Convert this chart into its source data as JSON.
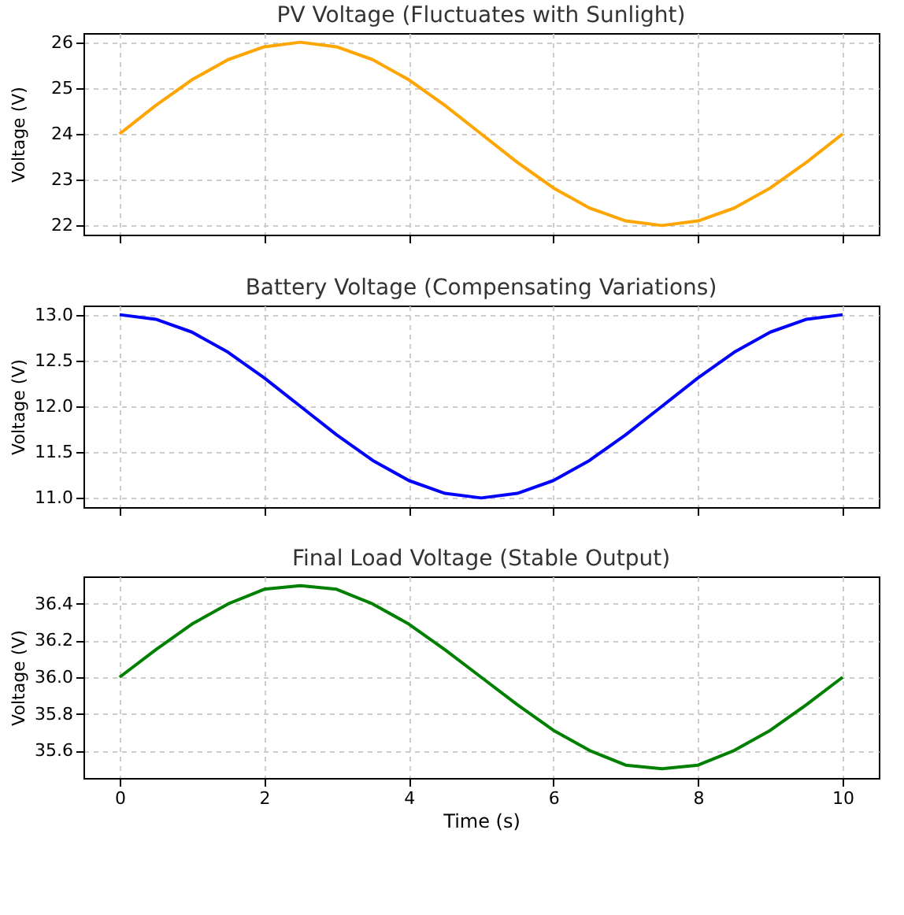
{
  "chart_data": [
    {
      "type": "line",
      "title": "PV Voltage (Fluctuates with Sunlight)",
      "ylabel": "Voltage (V)",
      "x": [
        0,
        0.5,
        1,
        1.5,
        2,
        2.5,
        3,
        3.5,
        4,
        4.5,
        5,
        5.5,
        6,
        6.5,
        7,
        7.5,
        8,
        8.5,
        9,
        9.5,
        10
      ],
      "series": [
        {
          "color": "#ffa500",
          "values": [
            24,
            24.62,
            25.18,
            25.62,
            25.9,
            26,
            25.9,
            25.62,
            25.18,
            24.62,
            24,
            23.38,
            22.82,
            22.38,
            22.1,
            22,
            22.1,
            22.38,
            22.82,
            23.38,
            24
          ]
        }
      ],
      "xlim": [
        -0.5,
        10.5
      ],
      "xticks": [
        0,
        2,
        4,
        6,
        8,
        10
      ],
      "ylim": [
        21.8,
        26.2
      ],
      "yticks": [
        22,
        23,
        24,
        25,
        26
      ],
      "grid": true,
      "tick_labels": "y"
    },
    {
      "type": "line",
      "title": "Battery Voltage (Compensating Variations)",
      "ylabel": "Voltage (V)",
      "x": [
        0,
        0.5,
        1,
        1.5,
        2,
        2.5,
        3,
        3.5,
        4,
        4.5,
        5,
        5.5,
        6,
        6.5,
        7,
        7.5,
        8,
        8.5,
        9,
        9.5,
        10
      ],
      "series": [
        {
          "color": "#0000ff",
          "values": [
            13,
            12.95,
            12.81,
            12.59,
            12.31,
            12,
            11.69,
            11.41,
            11.19,
            11.05,
            11,
            11.05,
            11.19,
            11.41,
            11.69,
            12,
            12.31,
            12.59,
            12.81,
            12.95,
            13
          ]
        }
      ],
      "xlim": [
        -0.5,
        10.5
      ],
      "xticks": [
        0,
        2,
        4,
        6,
        8,
        10
      ],
      "ylim": [
        10.9,
        13.1
      ],
      "yticks": [
        {
          "value": 11,
          "label": "11.0"
        },
        11.5,
        {
          "value": 12,
          "label": "12.0"
        },
        12.5,
        {
          "value": 13,
          "label": "13.0"
        }
      ],
      "grid": true,
      "tick_labels": "y"
    },
    {
      "type": "line",
      "title": "Final Load Voltage (Stable Output)",
      "xlabel": "Time (s)",
      "ylabel": "Voltage (V)",
      "x": [
        0,
        0.5,
        1,
        1.5,
        2,
        2.5,
        3,
        3.5,
        4,
        4.5,
        5,
        5.5,
        6,
        6.5,
        7,
        7.5,
        8,
        8.5,
        9,
        9.5,
        10
      ],
      "series": [
        {
          "color": "#008000",
          "values": [
            36,
            36.15,
            36.29,
            36.4,
            36.48,
            36.5,
            36.48,
            36.4,
            36.29,
            36.15,
            36,
            35.85,
            35.71,
            35.6,
            35.52,
            35.5,
            35.52,
            35.6,
            35.71,
            35.85,
            36
          ]
        }
      ],
      "xlim": [
        -0.5,
        10.5
      ],
      "xticks": [
        0,
        2,
        4,
        6,
        8,
        10
      ],
      "ylim": [
        35.45,
        36.55
      ],
      "yticks": [
        {
          "value": 35.6,
          "label": "35.6"
        },
        {
          "value": 35.8,
          "label": "35.8"
        },
        {
          "value": 36,
          "label": "36.0"
        },
        {
          "value": 36.2,
          "label": "36.2"
        },
        {
          "value": 36.4,
          "label": "36.4"
        }
      ],
      "grid": true
    }
  ]
}
